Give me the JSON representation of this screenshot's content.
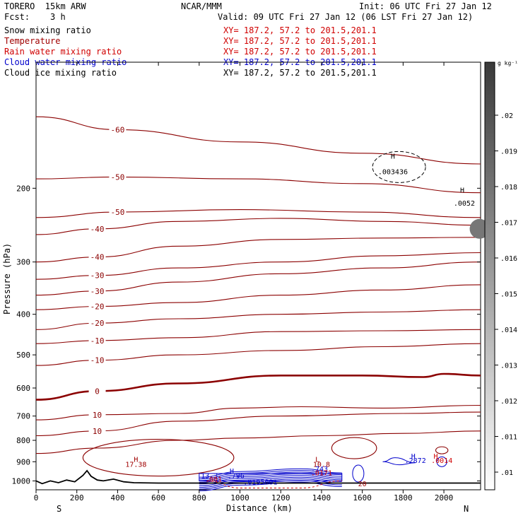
{
  "header": {
    "model": "TORERO  15km ARW",
    "org": "NCAR/MMM",
    "init": "Init: 06 UTC Fri 27 Jan 12",
    "fcst": "Fcst:    3 h",
    "valid": "Valid: 09 UTC Fri 27 Jan 12 (06 LST Fri 27 Jan 12)"
  },
  "legend": [
    {
      "name": "Snow mixing ratio",
      "xy": "XY= 187.2, 57.2 to 201.5,201.1",
      "color": "#000000"
    },
    {
      "name": "Temperature",
      "xy": "XY= 187.2, 57.2 to 201.5,201.1",
      "color": "#a00000"
    },
    {
      "name": "Rain water mixing ratio",
      "xy": "XY= 187.2, 57.2 to 201.5,201.1",
      "color": "#d00000"
    },
    {
      "name": "Cloud water mixing ratio",
      "xy": "XY= 187.2, 57.2 to 201.5,201.1",
      "color": "#0000cc"
    },
    {
      "name": "Cloud ice mixing ratio",
      "xy": "XY= 187.2, 57.2 to 201.5,201.1",
      "color": "#000000"
    }
  ],
  "chart_data": {
    "type": "contour cross-section",
    "xlabel": "Distance (km)",
    "ylabel": "Pressure (hPa)",
    "x_ticks": [
      0,
      200,
      400,
      600,
      800,
      1000,
      1200,
      1400,
      1600,
      1800,
      2000
    ],
    "y_ticks": [
      200,
      300,
      400,
      500,
      600,
      700,
      800,
      900,
      1000
    ],
    "xlim": [
      0,
      2180
    ],
    "ylim": [
      1050,
      100
    ],
    "y_scale": "log",
    "x_end_labels": {
      "left": "S",
      "right": "N"
    },
    "colorbar": {
      "unit": "g kg⁻¹",
      "ticks": [
        ".02",
        ".019",
        ".018",
        ".017",
        ".016",
        ".015",
        ".014",
        ".013",
        ".012",
        ".011",
        ".01"
      ]
    },
    "temperature_contours": [
      {
        "label": "-60",
        "points": [
          [
            0,
            135
          ],
          [
            400,
            145
          ],
          [
            1000,
            155
          ],
          [
            1600,
            165
          ],
          [
            2180,
            175
          ]
        ]
      },
      {
        "label": "-50",
        "points": [
          [
            0,
            190
          ],
          [
            400,
            188
          ],
          [
            1000,
            190
          ],
          [
            1600,
            195
          ],
          [
            2180,
            205
          ]
        ]
      },
      {
        "label": "-50",
        "points": [
          [
            0,
            235
          ],
          [
            400,
            228
          ],
          [
            1000,
            225
          ],
          [
            1600,
            228
          ],
          [
            2180,
            235
          ]
        ]
      },
      {
        "label": "-40",
        "points": [
          [
            0,
            258
          ],
          [
            300,
            250
          ],
          [
            700,
            240
          ],
          [
            1200,
            236
          ],
          [
            1700,
            240
          ],
          [
            2180,
            245
          ]
        ]
      },
      {
        "label": "-40",
        "points": [
          [
            0,
            300
          ],
          [
            300,
            292
          ],
          [
            700,
            275
          ],
          [
            1200,
            265
          ],
          [
            1700,
            263
          ],
          [
            2180,
            262
          ]
        ]
      },
      {
        "label": "-30",
        "points": [
          [
            0,
            330
          ],
          [
            300,
            323
          ],
          [
            700,
            310
          ],
          [
            1200,
            300
          ],
          [
            1700,
            290
          ],
          [
            2180,
            285
          ]
        ]
      },
      {
        "label": "-30",
        "points": [
          [
            0,
            360
          ],
          [
            300,
            352
          ],
          [
            700,
            335
          ],
          [
            1200,
            320
          ],
          [
            1700,
            310
          ],
          [
            2180,
            300
          ]
        ]
      },
      {
        "label": "-20",
        "points": [
          [
            0,
            390
          ],
          [
            300,
            383
          ],
          [
            700,
            375
          ],
          [
            1200,
            360
          ],
          [
            1700,
            350
          ],
          [
            2180,
            340
          ]
        ]
      },
      {
        "label": "-20",
        "points": [
          [
            0,
            435
          ],
          [
            300,
            420
          ],
          [
            700,
            410
          ],
          [
            1200,
            400
          ],
          [
            1700,
            395
          ],
          [
            2180,
            390
          ]
        ]
      },
      {
        "label": "-10",
        "points": [
          [
            0,
            470
          ],
          [
            300,
            462
          ],
          [
            700,
            455
          ],
          [
            1200,
            440
          ],
          [
            1700,
            438
          ],
          [
            2180,
            435
          ]
        ]
      },
      {
        "label": "-10",
        "points": [
          [
            0,
            530
          ],
          [
            300,
            515
          ],
          [
            700,
            500
          ],
          [
            1200,
            488
          ],
          [
            1700,
            478
          ],
          [
            2180,
            470
          ]
        ]
      },
      {
        "label": "0",
        "points": [
          [
            0,
            640
          ],
          [
            300,
            610
          ],
          [
            700,
            585
          ],
          [
            1200,
            560
          ],
          [
            1600,
            560
          ],
          [
            1900,
            565
          ],
          [
            2000,
            555
          ],
          [
            2180,
            560
          ]
        ]
      },
      {
        "label": "10",
        "points": [
          [
            0,
            715
          ],
          [
            300,
            695
          ],
          [
            700,
            690
          ],
          [
            1000,
            670
          ],
          [
            1300,
            665
          ],
          [
            1700,
            670
          ],
          [
            2180,
            660
          ]
        ]
      },
      {
        "label": "10",
        "points": [
          [
            0,
            780
          ],
          [
            300,
            760
          ],
          [
            700,
            720
          ],
          [
            1200,
            700
          ],
          [
            1800,
            690
          ],
          [
            2180,
            685
          ]
        ]
      },
      {
        "label": "",
        "points": [
          [
            0,
            860
          ],
          [
            300,
            835
          ],
          [
            700,
            800
          ],
          [
            1000,
            790
          ],
          [
            1400,
            780
          ],
          [
            1800,
            770
          ],
          [
            2180,
            760
          ]
        ]
      }
    ],
    "annotations": [
      {
        "text": "H",
        "x": 1750,
        "y": 170,
        "color": "#000000"
      },
      {
        "text": ".003436",
        "x": 1750,
        "y": 185,
        "color": "#000000"
      },
      {
        "text": "H",
        "x": 2090,
        "y": 205,
        "color": "#000000"
      },
      {
        "text": ".0052",
        "x": 2100,
        "y": 220,
        "color": "#000000"
      },
      {
        "text": "H",
        "x": 490,
        "y": 900,
        "color": "#a00000"
      },
      {
        "text": "17.38",
        "x": 490,
        "y": 925,
        "color": "#a00000"
      },
      {
        "text": "H",
        "x": 960,
        "y": 960,
        "color": "#0000cc"
      },
      {
        "text": ".796",
        "x": 980,
        "y": 985,
        "color": "#0000cc"
      },
      {
        "text": "13.3",
        "x": 850,
        "y": 985,
        "color": "#0000cc"
      },
      {
        "text": ".001",
        "x": 870,
        "y": 1005,
        "color": "#d00000"
      },
      {
        "text": ".0195001",
        "x": 1100,
        "y": 1020,
        "color": "#0000cc"
      },
      {
        "text": "L",
        "x": 1380,
        "y": 900,
        "color": "#a00000"
      },
      {
        "text": "10.8",
        "x": 1400,
        "y": 925,
        "color": "#a00000"
      },
      {
        "text": ".743",
        "x": 1390,
        "y": 950,
        "color": "#0000cc"
      },
      {
        "text": ".0171",
        "x": 1400,
        "y": 970,
        "color": "#d00000"
      },
      {
        "text": "20",
        "x": 1600,
        "y": 1030,
        "color": "#a00000"
      },
      {
        "text": "H",
        "x": 1850,
        "y": 885,
        "color": "#0000cc"
      },
      {
        "text": ".2872",
        "x": 1860,
        "y": 905,
        "color": "#0000cc"
      },
      {
        "text": "H",
        "x": 1960,
        "y": 885,
        "color": "#d00000"
      },
      {
        "text": ".0014",
        "x": 1990,
        "y": 905,
        "color": "#d00000"
      }
    ]
  }
}
